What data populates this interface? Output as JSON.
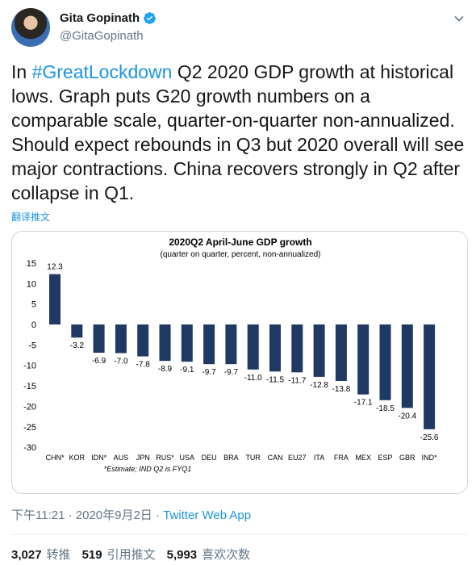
{
  "author": {
    "display_name": "Gita Gopinath",
    "handle": "@GitaGopinath"
  },
  "tweet": {
    "segments": [
      {
        "text": "In ",
        "hashtag": false
      },
      {
        "text": "#GreatLockdown",
        "hashtag": true
      },
      {
        "text": " Q2 2020 GDP growth at historical lows. Graph puts G20 growth numbers on a comparable scale, quarter-on-quarter non-annualized. Should expect rebounds in Q3 but 2020 overall will see major contractions. China recovers strongly in Q2 after collapse in Q1.",
        "hashtag": false
      }
    ],
    "translate_label": "翻译推文"
  },
  "meta": {
    "timestamp": "下午11:21 · 2020年9月2日",
    "separator": " · ",
    "source": "Twitter Web App"
  },
  "stats": [
    {
      "count": "3,027",
      "label": "转推"
    },
    {
      "count": "519",
      "label": "引用推文"
    },
    {
      "count": "5,993",
      "label": "喜欢次数"
    }
  ],
  "colors": {
    "bar": "#1f3864",
    "link": "#1b95e0",
    "muted": "#657786"
  },
  "icons": {
    "verified": "verified-badge-icon",
    "menu": "chevron-down-icon"
  },
  "chart_data": {
    "type": "bar",
    "title": "2020Q2 April-June GDP growth",
    "subtitle": "(quarter on quarter, percent, non-annualized)",
    "note": "*Estimate; IND Q2 is FYQ1",
    "categories": [
      "CHN*",
      "KOR",
      "IDN*",
      "AUS",
      "JPN",
      "RUS*",
      "USA",
      "DEU",
      "BRA",
      "TUR",
      "CAN",
      "EU27",
      "ITA",
      "FRA",
      "MEX",
      "ESP",
      "GBR",
      "IND*"
    ],
    "values": [
      12.3,
      -3.2,
      -6.9,
      -7.0,
      -7.8,
      -8.9,
      -9.1,
      -9.7,
      -9.7,
      -11.0,
      -11.5,
      -11.7,
      -12.8,
      -13.8,
      -17.1,
      -18.5,
      -20.4,
      -25.6
    ],
    "value_labels": [
      "12.3",
      "-3.2",
      "-6.9",
      "-7.0",
      "-7.8",
      "-8.9",
      "-9.1",
      "-9.7",
      "-9.7",
      "-11.0",
      "-11.5",
      "-11.7",
      "-12.8",
      "-13.8",
      "-17.1",
      "-18.5",
      "-20.4",
      "-25.6"
    ],
    "y_ticks": [
      15,
      10,
      5,
      0,
      -5,
      -10,
      -15,
      -20,
      -25,
      -30
    ],
    "ylim": [
      -30,
      15
    ],
    "grid": false
  }
}
